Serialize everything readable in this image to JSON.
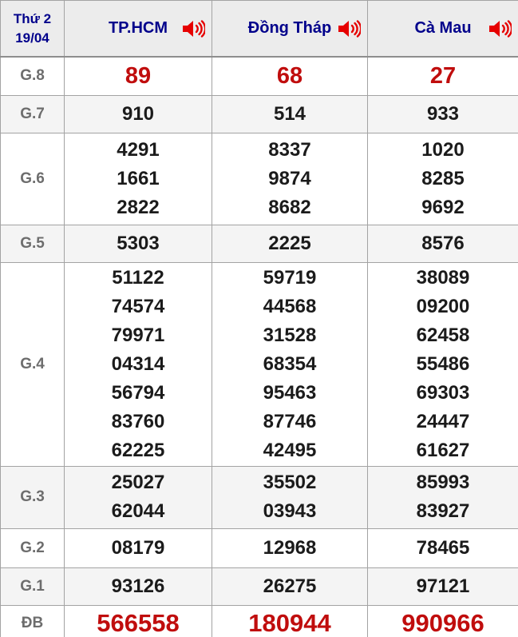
{
  "header": {
    "day": "Thứ 2",
    "date": "19/04",
    "columns": [
      {
        "name": "TP.HCM",
        "icon": "speaker-icon"
      },
      {
        "name": "Đồng Tháp",
        "icon": "speaker-icon"
      },
      {
        "name": "Cà Mau",
        "icon": "speaker-icon"
      }
    ]
  },
  "rows": [
    {
      "label": "G.8",
      "style": "red-large",
      "values": [
        [
          "89"
        ],
        [
          "68"
        ],
        [
          "27"
        ]
      ]
    },
    {
      "label": "G.7",
      "values": [
        [
          "910"
        ],
        [
          "514"
        ],
        [
          "933"
        ]
      ]
    },
    {
      "label": "G.6",
      "values": [
        [
          "4291",
          "1661",
          "2822"
        ],
        [
          "8337",
          "9874",
          "8682"
        ],
        [
          "1020",
          "8285",
          "9692"
        ]
      ]
    },
    {
      "label": "G.5",
      "values": [
        [
          "5303"
        ],
        [
          "2225"
        ],
        [
          "8576"
        ]
      ]
    },
    {
      "label": "G.4",
      "values": [
        [
          "51122",
          "74574",
          "79971",
          "04314",
          "56794",
          "83760",
          "62225"
        ],
        [
          "59719",
          "44568",
          "31528",
          "68354",
          "95463",
          "87746",
          "42495"
        ],
        [
          "38089",
          "09200",
          "62458",
          "55486",
          "69303",
          "24447",
          "61627"
        ]
      ]
    },
    {
      "label": "G.3",
      "values": [
        [
          "25027",
          "62044"
        ],
        [
          "35502",
          "03943"
        ],
        [
          "85993",
          "83927"
        ]
      ]
    },
    {
      "label": "G.2",
      "values": [
        [
          "08179"
        ],
        [
          "12968"
        ],
        [
          "78465"
        ]
      ]
    },
    {
      "label": "G.1",
      "values": [
        [
          "93126"
        ],
        [
          "26275"
        ],
        [
          "97121"
        ]
      ]
    },
    {
      "label": "ĐB",
      "style": "red-large",
      "values": [
        [
          "566558"
        ],
        [
          "180944"
        ],
        [
          "990966"
        ]
      ]
    }
  ],
  "colors": {
    "header_text": "#00008b",
    "prize_label": "#6d6d6d",
    "number_default": "#1b1b1b",
    "number_highlight": "#c00d0d",
    "speaker_icon": "#e60000",
    "header_bg": "#ececec",
    "row_alt_bg": "#f4f4f4",
    "border": "#a3a3a3"
  }
}
